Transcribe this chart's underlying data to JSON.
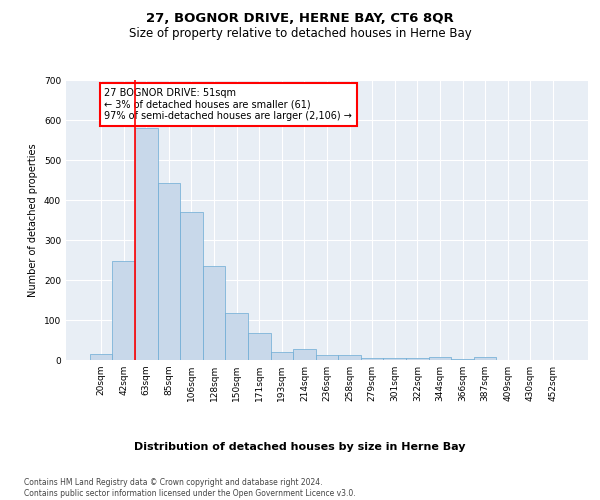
{
  "title": "27, BOGNOR DRIVE, HERNE BAY, CT6 8QR",
  "subtitle": "Size of property relative to detached houses in Herne Bay",
  "xlabel": "Distribution of detached houses by size in Herne Bay",
  "ylabel": "Number of detached properties",
  "bar_color": "#c8d8ea",
  "bar_edge_color": "#6aaad4",
  "background_color": "#e8eef5",
  "grid_color": "#ffffff",
  "annotation_text": "27 BOGNOR DRIVE: 51sqm\n← 3% of detached houses are smaller (61)\n97% of semi-detached houses are larger (2,106) →",
  "vline_color": "red",
  "categories": [
    "20sqm",
    "42sqm",
    "63sqm",
    "85sqm",
    "106sqm",
    "128sqm",
    "150sqm",
    "171sqm",
    "193sqm",
    "214sqm",
    "236sqm",
    "258sqm",
    "279sqm",
    "301sqm",
    "322sqm",
    "344sqm",
    "366sqm",
    "387sqm",
    "409sqm",
    "430sqm",
    "452sqm"
  ],
  "values": [
    15,
    248,
    580,
    443,
    370,
    235,
    118,
    67,
    20,
    28,
    12,
    12,
    5,
    5,
    5,
    8,
    2,
    7,
    0,
    0,
    0
  ],
  "ylim": [
    0,
    700
  ],
  "yticks": [
    0,
    100,
    200,
    300,
    400,
    500,
    600,
    700
  ],
  "footer_text": "Contains HM Land Registry data © Crown copyright and database right 2024.\nContains public sector information licensed under the Open Government Licence v3.0.",
  "title_fontsize": 9.5,
  "subtitle_fontsize": 8.5,
  "xlabel_fontsize": 8,
  "ylabel_fontsize": 7,
  "tick_fontsize": 6.5,
  "footer_fontsize": 5.5,
  "annotation_fontsize": 7
}
